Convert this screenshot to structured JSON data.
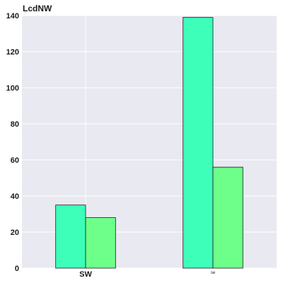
{
  "chart_data": {
    "type": "bar",
    "title": "LcdNW",
    "xlabel": "",
    "ylabel": "",
    "categories": [
      "SW",
      "se"
    ],
    "series": [
      {
        "values": [
          35,
          139
        ],
        "color": "#3dffb9"
      },
      {
        "values": [
          28,
          56
        ],
        "color": "#6dff8a"
      }
    ],
    "ylim": [
      0,
      140
    ],
    "yticks": [
      0,
      20,
      40,
      60,
      80,
      100,
      120,
      140
    ],
    "grid": true,
    "plot_background": "#e9e9f1",
    "grid_color": "#ffffff",
    "bar_edge_color": "#1a1a1a"
  }
}
